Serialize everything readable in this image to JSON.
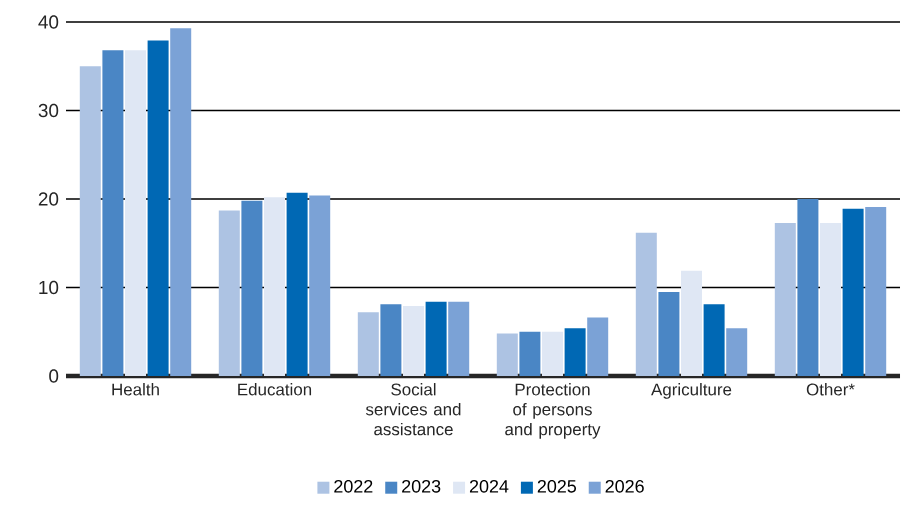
{
  "chart_data": {
    "type": "bar",
    "categories": [
      "Health",
      "Education",
      "Social services and assistance",
      "Protection of persons and property",
      "Agriculture",
      "Other*"
    ],
    "series": [
      {
        "name": "2022",
        "color": "#adc3e3",
        "values": [
          35.0,
          18.7,
          7.2,
          4.8,
          16.2,
          17.3
        ]
      },
      {
        "name": "2023",
        "color": "#4a86c5",
        "values": [
          36.8,
          19.8,
          8.1,
          5.0,
          9.5,
          20.0
        ]
      },
      {
        "name": "2024",
        "color": "#dfe7f4",
        "values": [
          36.8,
          20.2,
          7.9,
          5.0,
          11.9,
          17.3
        ]
      },
      {
        "name": "2025",
        "color": "#0068b4",
        "values": [
          37.9,
          20.7,
          8.4,
          5.4,
          8.1,
          18.9
        ]
      },
      {
        "name": "2026",
        "color": "#7ba2d6",
        "values": [
          39.3,
          20.4,
          8.4,
          6.6,
          5.4,
          19.1
        ]
      }
    ],
    "ylim": [
      0,
      40
    ],
    "yticks": [
      0,
      10,
      20,
      30,
      40
    ],
    "grid": "y",
    "legend": "bottom"
  }
}
